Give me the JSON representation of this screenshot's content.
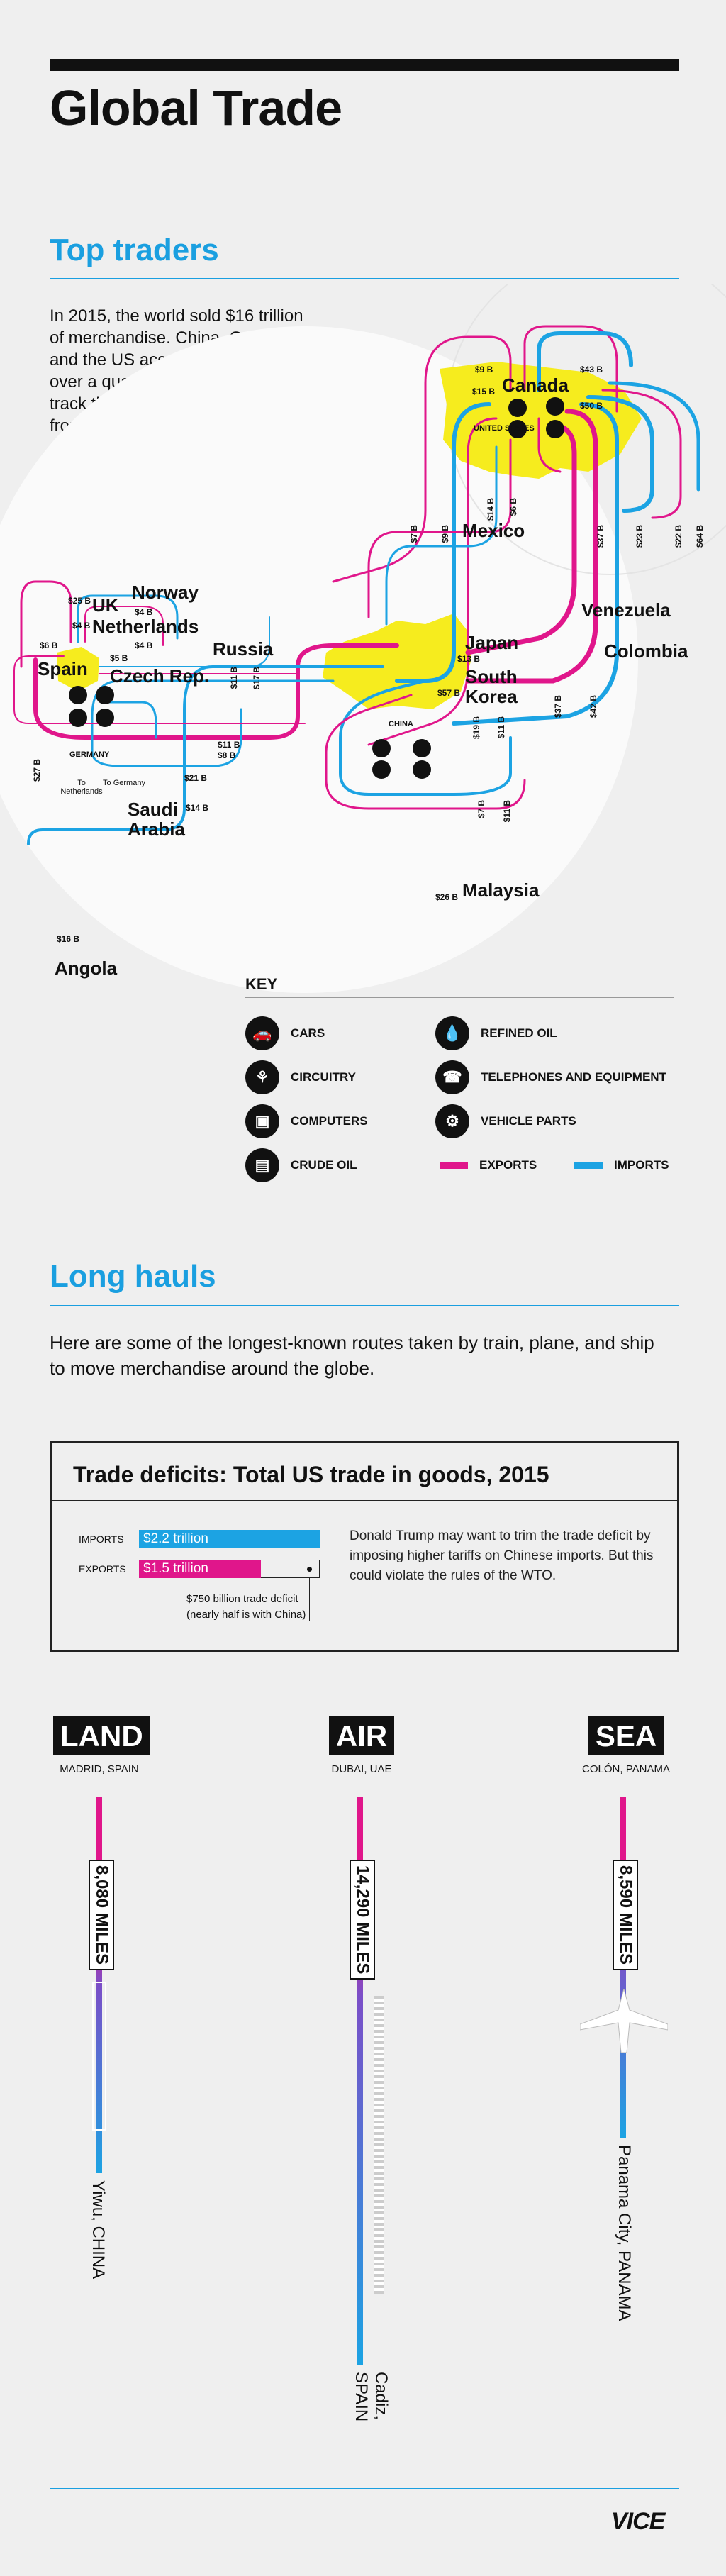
{
  "header": {
    "title": "Global Trade"
  },
  "top_traders": {
    "title": "Top traders",
    "intro": "In 2015, the world sold $16 trillion of merchandise. China, Germany, and the US accounted for just over a quarter of that. Here we track the two most-traded goods from each country."
  },
  "map": {
    "countries": {
      "canada": "Canada",
      "mexico": "Mexico",
      "venezuela": "Venezuela",
      "colombia": "Colombia",
      "japan": "Japan",
      "south_korea": "South Korea",
      "malaysia": "Malaysia",
      "angola": "Angola",
      "saudi": "Saudi Arabia",
      "russia": "Russia",
      "norway": "Norway",
      "uk": "UK",
      "netherlands": "Netherlands",
      "spain": "Spain",
      "czech": "Czech Rep."
    },
    "hubs": {
      "us": "UNITED STATES",
      "china": "CHINA",
      "germany": "GERMANY"
    },
    "small_labels": {
      "to_netherlands": "To Netherlands",
      "to_germany": "To Germany"
    },
    "amounts": {
      "a9b": "$9 B",
      "a43b": "$43 B",
      "a15b": "$15 B",
      "a50b": "$50 B",
      "a25b": "$25 B",
      "a4b_1": "$4 B",
      "a4b_2": "$4 B",
      "a6b": "$6 B",
      "a4b_3": "$4 B",
      "a5b": "$5 B",
      "a13b": "$13 B",
      "a57b": "$57 B",
      "a11b": "$11 B",
      "a8b": "$8 B",
      "a21b": "$21 B",
      "a14b": "$14 B",
      "a26b": "$26 B",
      "a16b": "$16 B",
      "v7b": "$7 B",
      "v9b": "$9 B",
      "v14b": "$14 B",
      "v6b": "$6 B",
      "v37b": "$37 B",
      "v23b": "$23 B",
      "v22b": "$22 B",
      "v64b": "$64 B",
      "v11b": "$11 B",
      "v19b": "$19 B",
      "v37b_2": "$37 B",
      "v42b": "$42 B",
      "v7b_2": "$7 B",
      "v11b_2": "$11 B",
      "v27b": "$27 B",
      "v11b_3": "$11 B",
      "v17b": "$17 B"
    }
  },
  "key": {
    "title": "KEY",
    "items": [
      {
        "label": "CARS",
        "icon": "car-icon"
      },
      {
        "label": "REFINED OIL",
        "icon": "drop-icon"
      },
      {
        "label": "CIRCUITRY",
        "icon": "circuit-icon"
      },
      {
        "label": "TELEPHONES AND EQUIPMENT",
        "icon": "phone-icon"
      },
      {
        "label": "COMPUTERS",
        "icon": "computer-icon"
      },
      {
        "label": "VEHICLE PARTS",
        "icon": "gear-icon"
      },
      {
        "label": "CRUDE OIL",
        "icon": "barrel-icon"
      },
      {
        "label": "EXPORTS",
        "icon": "exports-swatch"
      },
      {
        "label": "IMPORTS",
        "icon": "imports-swatch"
      }
    ],
    "colors": {
      "exports": "#e0168b",
      "imports": "#1ca3e3",
      "highlight": "#f6ec1e"
    }
  },
  "long_hauls": {
    "title": "Long hauls",
    "intro": "Here are some of the longest-known routes taken by train, plane, and ship to move merchandise around the globe."
  },
  "deficits": {
    "title": "Trade deficits: Total US trade in goods, 2015",
    "imports_label": "IMPORTS",
    "imports_value": "$2.2 trillion",
    "exports_label": "EXPORTS",
    "exports_value": "$1.5 trillion",
    "deficit_note": "$750 billion trade deficit (nearly half is with China)",
    "note": "Donald Trump may want to trim the trade deficit by imposing higher tariffs on Chinese imports. But this could violate the rules of the WTO."
  },
  "routes": [
    {
      "mode": "LAND",
      "origin": "MADRID, SPAIN",
      "miles": "8,080 MILES",
      "destination": "Yiwu, CHINA"
    },
    {
      "mode": "AIR",
      "origin": "DUBAI, UAE",
      "miles": "14,290 MILES",
      "destination": "Cadiz, SPAIN"
    },
    {
      "mode": "SEA",
      "origin": "COLÓN, PANAMA",
      "miles": "8,590 MILES",
      "destination": "Panama City, PANAMA"
    }
  ],
  "footer": {
    "brand": "VICE"
  }
}
